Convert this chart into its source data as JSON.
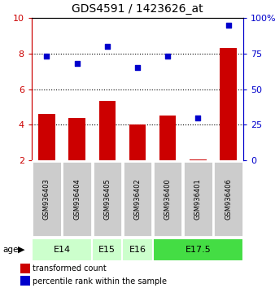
{
  "title": "GDS4591 / 1423626_at",
  "samples": [
    "GSM936403",
    "GSM936404",
    "GSM936405",
    "GSM936402",
    "GSM936400",
    "GSM936401",
    "GSM936406"
  ],
  "transformed_counts": [
    4.6,
    4.4,
    5.35,
    4.0,
    4.5,
    2.05,
    8.3
  ],
  "percentile_ranks": [
    73,
    68,
    80,
    65,
    73,
    30,
    95
  ],
  "ylim_left": [
    2,
    10
  ],
  "ylim_right": [
    0,
    100
  ],
  "yticks_left": [
    2,
    4,
    6,
    8,
    10
  ],
  "yticks_right": [
    0,
    25,
    50,
    75,
    100
  ],
  "bar_color": "#cc0000",
  "dot_color": "#0000cc",
  "age_groups": [
    {
      "label": "E14",
      "samples": [
        0,
        1
      ],
      "color": "#ccffcc"
    },
    {
      "label": "E15",
      "samples": [
        2
      ],
      "color": "#ccffcc"
    },
    {
      "label": "E16",
      "samples": [
        3
      ],
      "color": "#ccffcc"
    },
    {
      "label": "E17.5",
      "samples": [
        4,
        5,
        6
      ],
      "color": "#44dd44"
    }
  ],
  "age_label": "age",
  "legend_bar_label": "transformed count",
  "legend_dot_label": "percentile rank within the sample",
  "background_color": "#ffffff",
  "sample_box_color": "#cccccc",
  "gridline_ticks": [
    4,
    6,
    8
  ]
}
